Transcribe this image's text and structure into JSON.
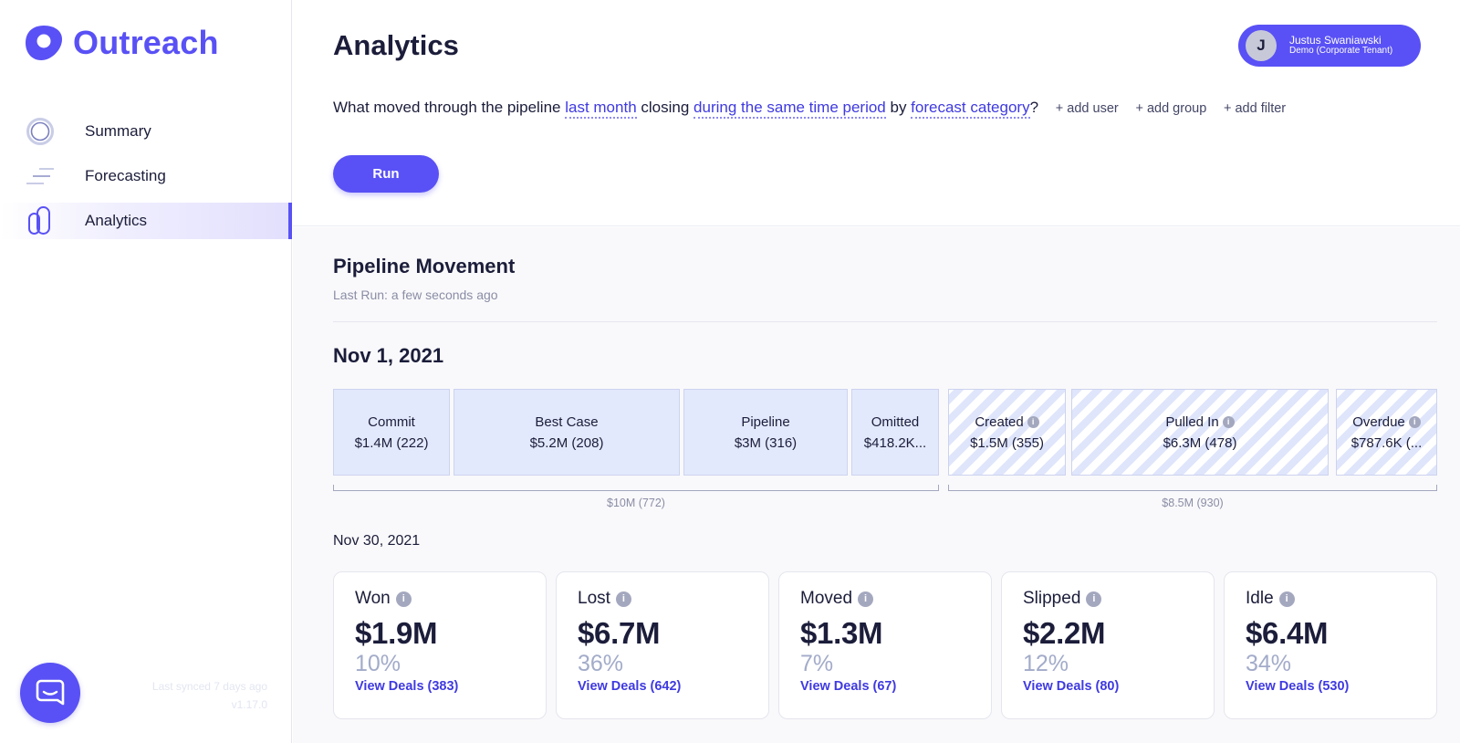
{
  "app": {
    "logo_text": "Outreach",
    "brand_color": "#5951f5"
  },
  "sidebar": {
    "items": [
      {
        "label": "Summary",
        "icon": "summary-icon"
      },
      {
        "label": "Forecasting",
        "icon": "forecasting-icon"
      },
      {
        "label": "Analytics",
        "icon": "analytics-icon",
        "active": true
      }
    ],
    "sync_text": "Last synced 7 days ago",
    "version": "v1.17.0",
    "chat_icon": "chat-icon"
  },
  "header": {
    "title": "Analytics",
    "user": {
      "initial": "J",
      "name": "Justus Swaniawski",
      "tenant": "Demo (Corporate Tenant)"
    }
  },
  "query": {
    "prefix": "What moved through the pipeline ",
    "period": "last month",
    "mid1": " closing ",
    "closing": "during the same time period",
    "mid2": " by ",
    "group_by": "forecast category",
    "suffix": "?",
    "add_user": "+ add user",
    "add_group": "+ add group",
    "add_filter": "+ add filter"
  },
  "run_label": "Run",
  "pipeline": {
    "title": "Pipeline Movement",
    "last_run": "Last Run: a few seconds ago",
    "start_date": "Nov 1, 2021",
    "segments": [
      {
        "label": "Commit",
        "value": "$1.4M (222)",
        "info": false
      },
      {
        "label": "Best Case",
        "value": "$5.2M (208)",
        "info": false
      },
      {
        "label": "Pipeline",
        "value": "$3M (316)",
        "info": false
      },
      {
        "label": "Omitted",
        "value": "$418.2K...",
        "info": false
      },
      {
        "label": "Created",
        "value": "$1.5M (355)",
        "info": true
      },
      {
        "label": "Pulled In",
        "value": "$6.3M (478)",
        "info": true
      },
      {
        "label": "Overdue",
        "value": "$787.6K (...",
        "info": true
      }
    ],
    "total_existing": "$10M (772)",
    "total_new": "$8.5M (930)",
    "end_date": "Nov 30, 2021",
    "outcomes": [
      {
        "label": "Won",
        "value": "$1.9M",
        "pct": "10%",
        "link": "View Deals (383)"
      },
      {
        "label": "Lost",
        "value": "$6.7M",
        "pct": "36%",
        "link": "View Deals (642)"
      },
      {
        "label": "Moved",
        "value": "$1.3M",
        "pct": "7%",
        "link": "View Deals (67)"
      },
      {
        "label": "Slipped",
        "value": "$2.2M",
        "pct": "12%",
        "link": "View Deals (80)"
      },
      {
        "label": "Idle",
        "value": "$6.4M",
        "pct": "34%",
        "link": "View Deals (530)"
      }
    ]
  }
}
